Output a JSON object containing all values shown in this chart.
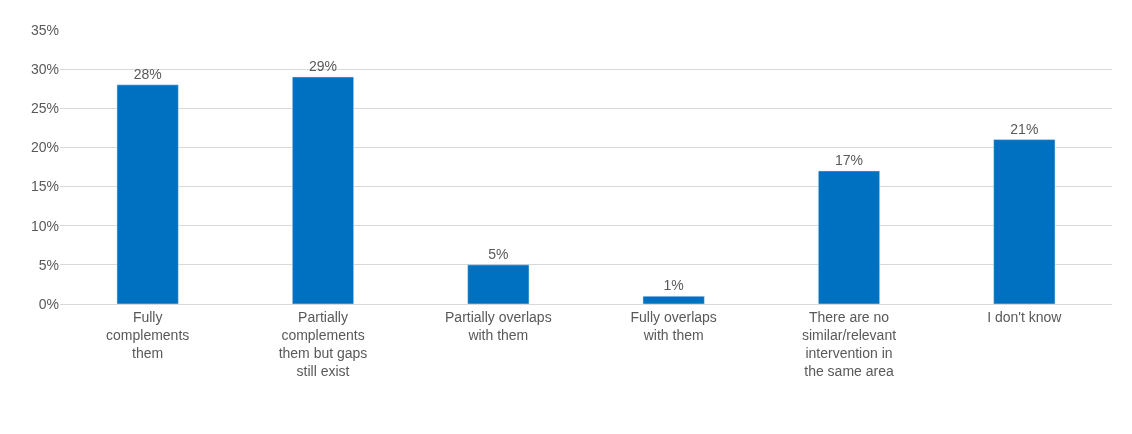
{
  "chart_data": {
    "type": "bar",
    "categories": [
      "Fully\ncomplements\nthem",
      "Partially\ncomplements\nthem but gaps\nstill exist",
      "Partially overlaps\nwith them",
      "Fully overlaps\nwith them",
      "There are no\nsimilar/relevant\nintervention in\nthe same area",
      "I don't know"
    ],
    "values": [
      28,
      29,
      5,
      1,
      17,
      21
    ],
    "value_labels": [
      "28%",
      "29%",
      "5%",
      "1%",
      "17%",
      "21%"
    ],
    "color": "#0070c0",
    "ylim": [
      0,
      35
    ],
    "yticks": [
      {
        "value": 0,
        "label": "0%"
      },
      {
        "value": 5,
        "label": "5%"
      },
      {
        "value": 10,
        "label": "10%"
      },
      {
        "value": 15,
        "label": "15%"
      },
      {
        "value": 20,
        "label": "20%"
      },
      {
        "value": 25,
        "label": "25%"
      },
      {
        "value": 30,
        "label": "30%"
      },
      {
        "value": 35,
        "label": "35%"
      }
    ],
    "grid": "y"
  }
}
